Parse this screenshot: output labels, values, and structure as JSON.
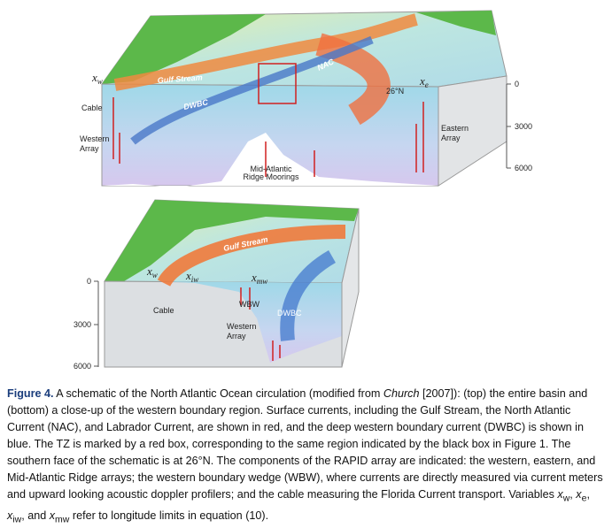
{
  "top_panel": {
    "labels": {
      "gulf_stream": "Gulf Stream",
      "cable": "Cable",
      "dwbc": "DWBC",
      "nac": "NAC",
      "latitude": "26°N",
      "western_array": [
        "Western",
        "Array"
      ],
      "mar_moorings": [
        "Mid-Atlantic",
        "Ridge Moorings"
      ],
      "eastern_array": [
        "Eastern",
        "Array"
      ]
    },
    "x_w": {
      "base": "x",
      "sub": "w"
    },
    "x_e": {
      "base": "x",
      "sub": "e"
    },
    "depth_ticks": [
      0,
      3000,
      6000
    ]
  },
  "bottom_panel": {
    "labels": {
      "gulf_stream": "Gulf Stream",
      "cable": "Cable",
      "wbw": "WBW",
      "dwbc": "DWBC",
      "western_array": [
        "Western",
        "Array"
      ]
    },
    "x_w": {
      "base": "x",
      "sub": "w"
    },
    "x_iw": {
      "base": "x",
      "sub": "iw"
    },
    "x_mw": {
      "base": "x",
      "sub": "mw"
    },
    "depth_ticks": [
      0,
      3000,
      6000
    ]
  },
  "caption": {
    "label": "Figure 4.",
    "parts": [
      " A schematic of the North Atlantic Ocean circulation (modified from ",
      "Church",
      " [2007]): (top) the entire basin and (bottom) a close-up of the western boundary region. Surface currents, including the Gulf Stream, the North Atlantic Current (NAC), and Labrador Current, are shown in red, and the deep western boundary current (DWBC) is shown in blue. The TZ is marked by a red box, corresponding to the same region indicated by the black box in Figure 1. The southern face of the schematic is at 26°N. The components of the RAPID array are indicated: the western, eastern, and Mid-Atlantic Ridge arrays; the western boundary wedge (WBW), where currents are directly measured via current meters and upward looking acoustic doppler profilers; and the cable measuring the Florida Current transport. Variables ",
      "x",
      "w",
      ", ",
      "x",
      "e",
      ", ",
      "x",
      "iw",
      ", and ",
      "x",
      "mw",
      " refer to longitude limits in equation (10)."
    ]
  }
}
